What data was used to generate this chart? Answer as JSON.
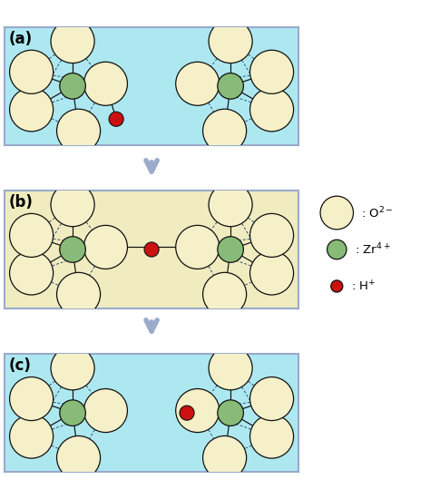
{
  "fig_bg": "#ffffff",
  "panel_a_bg": "#ade8f0",
  "panel_b_bg": "#f0ecc0",
  "panel_c_bg": "#ade8f0",
  "O2_color": "#f5f0c8",
  "O2_edge": "#111111",
  "Zr_color": "#88bb77",
  "Zr_edge": "#111111",
  "H_color": "#cc1111",
  "H_edge": "#111111",
  "label_a": "(a)",
  "label_b": "(b)",
  "label_c": "(c)",
  "arrow_color": "#9aacca",
  "line_color": "#111111",
  "dashed_color": "#335577"
}
